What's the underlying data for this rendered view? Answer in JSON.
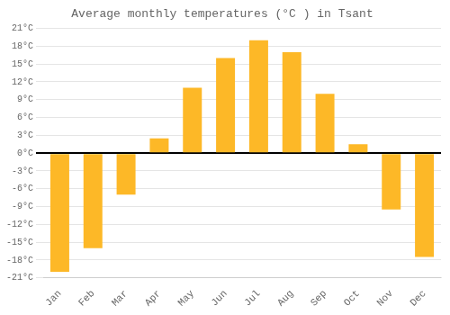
{
  "chart_data": {
    "type": "bar",
    "title": "Average monthly temperatures (°C ) in Tsant",
    "categories": [
      "Jan",
      "Feb",
      "Mar",
      "Apr",
      "May",
      "Jun",
      "Jul",
      "Aug",
      "Sep",
      "Oct",
      "Nov",
      "Dec"
    ],
    "values": [
      -20,
      -16,
      -7,
      2.5,
      11,
      16,
      19,
      17,
      10,
      1.5,
      -9.5,
      -17.5
    ],
    "color": "#FDB827",
    "ylim": [
      -21,
      21
    ],
    "yticks": [
      {
        "value": -21,
        "label": "-21°C"
      },
      {
        "value": -18,
        "label": "-18°C"
      },
      {
        "value": -15,
        "label": "-15°C"
      },
      {
        "value": -12,
        "label": "-12°C"
      },
      {
        "value": -9,
        "label": "-9°C"
      },
      {
        "value": -6,
        "label": "-6°C"
      },
      {
        "value": -3,
        "label": "-3°C"
      },
      {
        "value": 0,
        "label": "0°C"
      },
      {
        "value": 3,
        "label": "3°C"
      },
      {
        "value": 6,
        "label": "6°C"
      },
      {
        "value": 9,
        "label": "9°C"
      },
      {
        "value": 12,
        "label": "12°C"
      },
      {
        "value": 15,
        "label": "15°C"
      },
      {
        "value": 18,
        "label": "18°C"
      },
      {
        "value": 21,
        "label": "21°C"
      }
    ],
    "grid": true
  }
}
